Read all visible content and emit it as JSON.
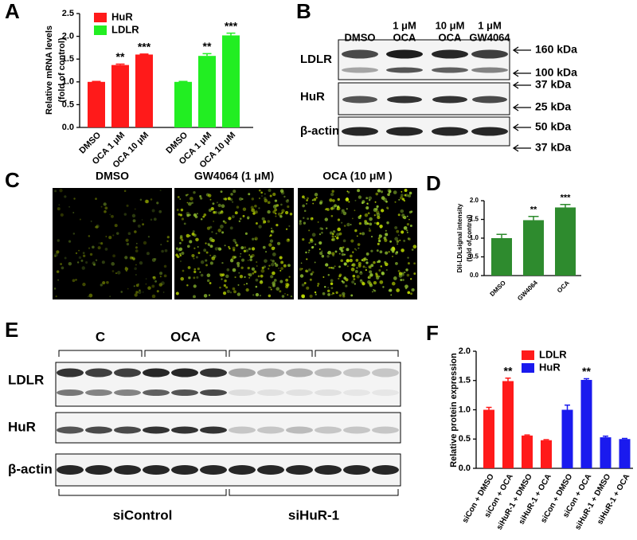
{
  "panel_letters": [
    "A",
    "B",
    "C",
    "D",
    "E",
    "F"
  ],
  "chart_data": [
    {
      "type": "bar",
      "categories": [
        "DMSO",
        "OCA 1 μM",
        "OCA 10 μM"
      ],
      "series": [
        {
          "name": "HuR",
          "color": "#ff1a1a",
          "values": [
            1.0,
            1.37,
            1.6
          ],
          "errors": [
            0.01,
            0.02,
            0.01
          ],
          "significance": [
            null,
            "**",
            "***"
          ]
        },
        {
          "name": "LDLR",
          "color": "#22ee22",
          "values": [
            1.0,
            1.57,
            2.02
          ],
          "errors": [
            0.01,
            0.05,
            0.05
          ],
          "significance": [
            null,
            "**",
            "***"
          ]
        }
      ],
      "ylabel": [
        "Relative mRNA levels",
        "(fold of control)"
      ],
      "ylim": [
        0,
        2.5
      ],
      "yticks": [
        {
          "value": 0,
          "label": "0.0"
        },
        0.5,
        {
          "value": 1,
          "label": "1.0"
        },
        1.5,
        {
          "value": 2,
          "label": "2.0"
        },
        2.5
      ],
      "legend": "top-left"
    },
    {
      "type": "bar",
      "categories": [
        "DMSO",
        "GW4064",
        "OCA"
      ],
      "color": "#2e8b2e",
      "values": [
        1.0,
        1.48,
        1.82
      ],
      "errors": [
        0.1,
        0.1,
        0.08
      ],
      "significance": [
        null,
        "**",
        "***"
      ],
      "ylabel": [
        "DiI-LDLsignal intensity",
        "(fold of control)"
      ],
      "ylim": [
        0,
        2.0
      ],
      "yticks": [
        {
          "value": 0,
          "label": "0.0"
        },
        0.5,
        {
          "value": 1,
          "label": "1.0"
        },
        1.5,
        {
          "value": 2,
          "label": "2.0"
        }
      ]
    },
    {
      "type": "bar",
      "categories": [
        "siCon + DMSO",
        "siCon + OCA",
        "siHuR-1 + DMSO",
        "siHuR-1 + OCA"
      ],
      "series": [
        {
          "name": "LDLR",
          "color": "#ff1a1a",
          "values": [
            1.0,
            1.49,
            0.56,
            0.48
          ],
          "errors": [
            0.04,
            0.05,
            0.01,
            0.01
          ],
          "significance": [
            null,
            "**",
            null,
            null
          ]
        },
        {
          "name": "HuR",
          "color": "#1a1aee",
          "values": [
            1.0,
            1.51,
            0.53,
            0.5
          ],
          "errors": [
            0.08,
            0.02,
            0.02,
            0.01
          ],
          "significance": [
            null,
            "**",
            null,
            null
          ]
        }
      ],
      "ylabel": [
        "Relative protein expression"
      ],
      "ylim": [
        0,
        2.0
      ],
      "yticks": [
        {
          "value": 0,
          "label": "0.0"
        },
        0.5,
        {
          "value": 1,
          "label": "1.0"
        },
        1.5,
        {
          "value": 2,
          "label": "2.0"
        }
      ],
      "legend": "top-right"
    }
  ],
  "blot_b": {
    "columns": [
      [
        "DMSO"
      ],
      [
        "1 μM",
        "OCA"
      ],
      [
        "10 μM",
        "OCA"
      ],
      [
        "1 μM",
        "GW4064"
      ]
    ],
    "rows": [
      "LDLR",
      "HuR",
      "β-actin"
    ],
    "markers": [
      "160 kDa",
      "100 kDa",
      "37 kDa",
      "25 kDa",
      "50 kDa",
      "37 kDa"
    ]
  },
  "images_c": {
    "labels": [
      "DMSO",
      "GW4064 (1 μM)",
      "OCA (10 μM )"
    ]
  },
  "blot_e": {
    "groups": [
      "C",
      "OCA",
      "C",
      "OCA"
    ],
    "rows": [
      "LDLR",
      "HuR",
      "β-actin"
    ],
    "conditions": [
      "siControl",
      "siHuR-1"
    ]
  }
}
